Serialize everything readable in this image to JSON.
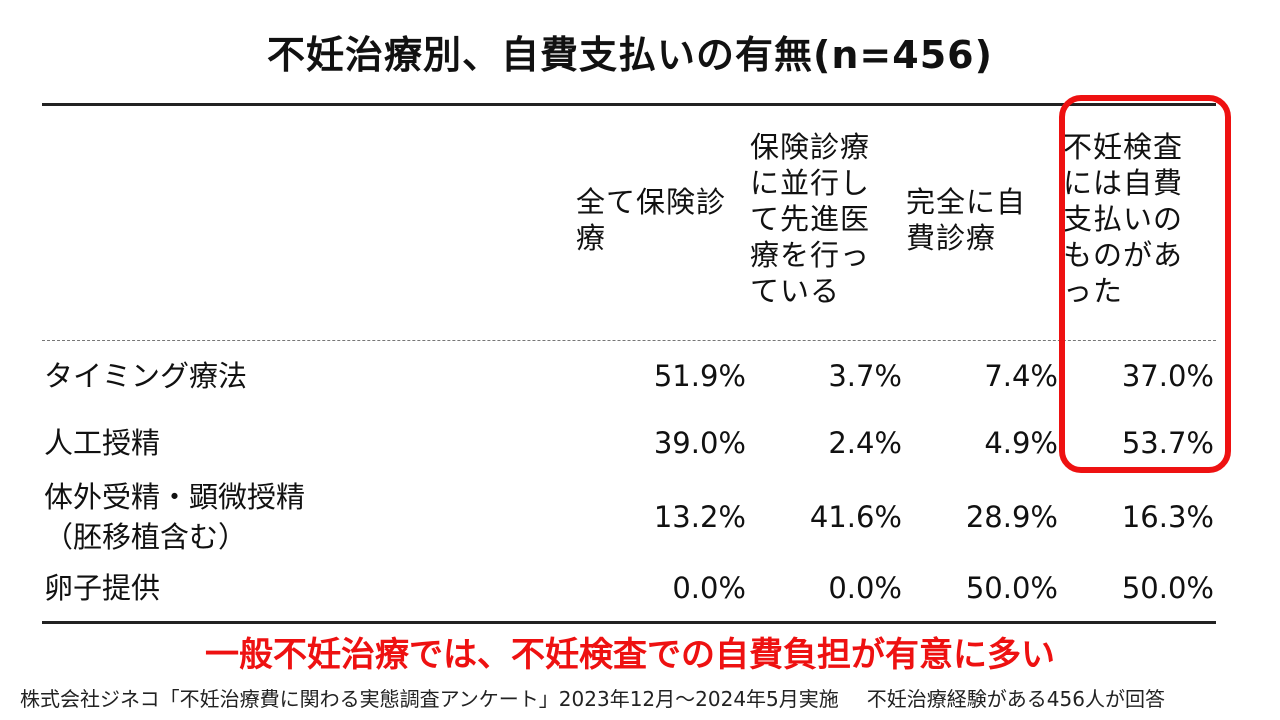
{
  "title": "不妊治療別、自費支払いの有無(n=456)",
  "table": {
    "columns": [
      "全て保険診療",
      "保険診療に並行して先進医療を行っている",
      "完全に自費診療",
      "不妊検査には自費支払いのものがあった"
    ],
    "rows": [
      {
        "label_lines": [
          "タイミング療法"
        ],
        "values": [
          "51.9%",
          "3.7%",
          "7.4%",
          "37.0%"
        ]
      },
      {
        "label_lines": [
          "人工授精"
        ],
        "values": [
          "39.0%",
          "2.4%",
          "4.9%",
          "53.7%"
        ]
      },
      {
        "label_lines": [
          "体外受精・顕微授精",
          "（胚移植含む）"
        ],
        "values": [
          "13.2%",
          "41.6%",
          "28.9%",
          "16.3%"
        ]
      },
      {
        "label_lines": [
          "卵子提供"
        ],
        "values": [
          "0.0%",
          "0.0%",
          "50.0%",
          "50.0%"
        ]
      }
    ],
    "highlight_column_index": 3,
    "highlight_color": "#ee1111"
  },
  "conclusion": "一般不妊治療では、不妊検査での自費負担が有意に多い",
  "source": {
    "survey": "株式会社ジネコ「不妊治療費に関わる実態調査アンケート」2023年12月～2024年5月実施",
    "respondents": "不妊治療経験がある456人が回答"
  }
}
